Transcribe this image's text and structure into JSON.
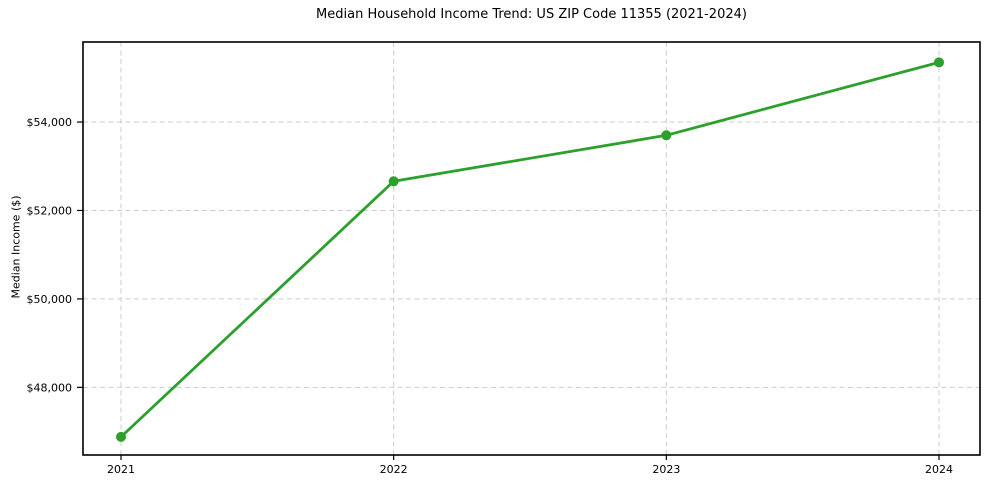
{
  "chart_data": {
    "type": "line",
    "title": "Median Household Income Trend: US ZIP Code 11355 (2021-2024)",
    "xlabel": "",
    "ylabel": "Median Income ($)",
    "categories": [
      "2021",
      "2022",
      "2023",
      "2024"
    ],
    "values": [
      46880,
      52660,
      53700,
      55350
    ],
    "yticks": [
      48000,
      50000,
      52000,
      54000
    ],
    "ytick_labels": [
      "$48,000",
      "$50,000",
      "$52,000",
      "$54,000"
    ],
    "ylim": [
      46470,
      55810
    ],
    "grid": true,
    "grid_line_style": "dashed",
    "legend": "none",
    "marker": "circle",
    "line_color": "#2ca02c",
    "grid_color": "#cdcdcd",
    "spine_color": "#000000",
    "text_color": "#000000",
    "background_color": "#ffffff"
  }
}
